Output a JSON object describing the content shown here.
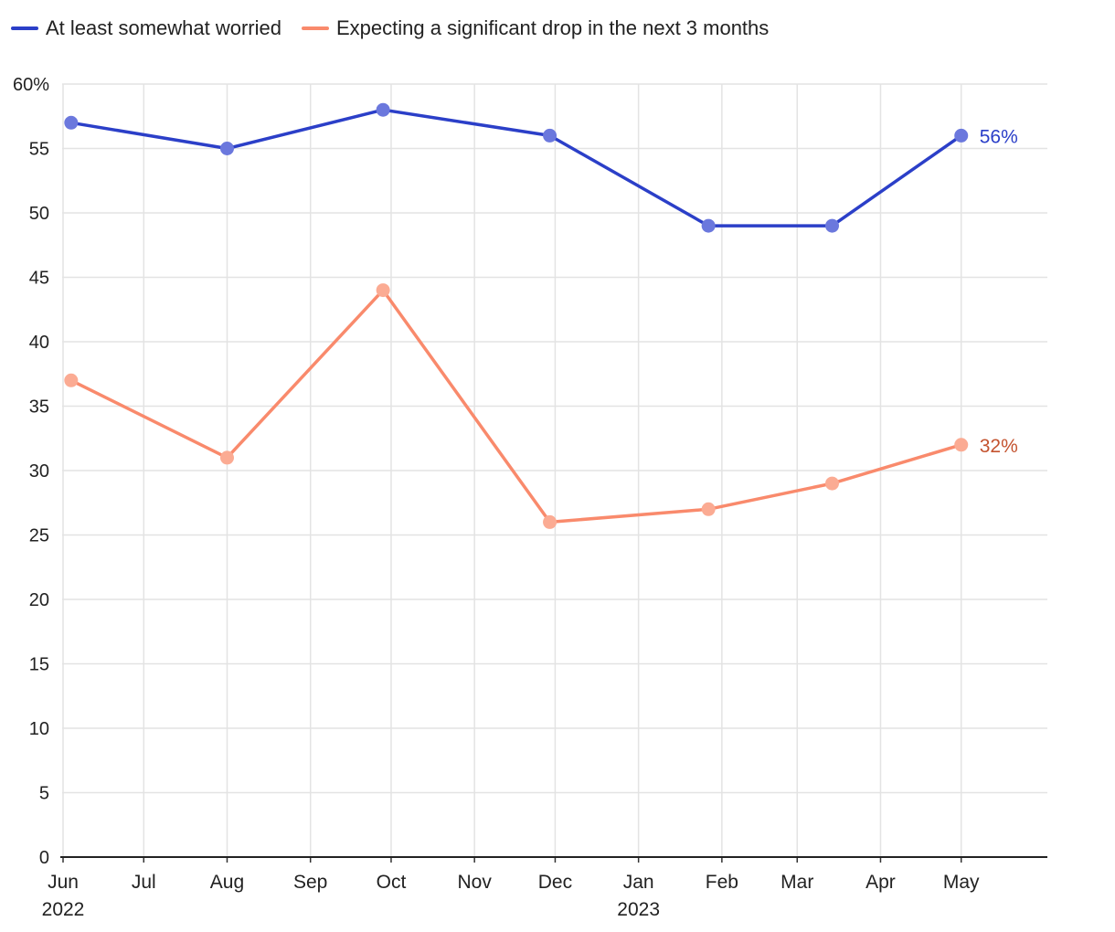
{
  "chart_data": {
    "type": "line",
    "title": "",
    "xlabel": "",
    "ylabel": "",
    "x_axis": {
      "range": [
        "2022-06-01",
        "2023-05-31"
      ],
      "ticks": [
        {
          "date": "2022-06-01",
          "label": "Jun",
          "sublabel": "2022"
        },
        {
          "date": "2022-07-01",
          "label": "Jul"
        },
        {
          "date": "2022-08-01",
          "label": "Aug"
        },
        {
          "date": "2022-09-01",
          "label": "Sep"
        },
        {
          "date": "2022-10-01",
          "label": "Oct"
        },
        {
          "date": "2022-11-01",
          "label": "Nov"
        },
        {
          "date": "2022-12-01",
          "label": "Dec"
        },
        {
          "date": "2023-01-01",
          "label": "Jan",
          "sublabel": "2023"
        },
        {
          "date": "2023-02-01",
          "label": "Feb"
        },
        {
          "date": "2023-03-01",
          "label": "Mar"
        },
        {
          "date": "2023-04-01",
          "label": "Apr"
        },
        {
          "date": "2023-05-01",
          "label": "May"
        }
      ]
    },
    "y_axis": {
      "range": [
        0,
        60
      ],
      "ticks": [
        0,
        5,
        10,
        15,
        20,
        25,
        30,
        35,
        40,
        45,
        50,
        55,
        60
      ],
      "tick_labels": [
        "0",
        "5",
        "10",
        "15",
        "20",
        "25",
        "30",
        "35",
        "40",
        "45",
        "50",
        "55",
        "60%"
      ]
    },
    "grid": true,
    "legend_position": "top-left",
    "series": [
      {
        "name": "At least somewhat worried",
        "color": "#2b3fc8",
        "marker_color": "#6b78dd",
        "label_color": "#2b3fc8",
        "end_label": "56%",
        "points": [
          {
            "x": "2022-06-04",
            "y": 57
          },
          {
            "x": "2022-08-01",
            "y": 55
          },
          {
            "x": "2022-09-28",
            "y": 58
          },
          {
            "x": "2022-11-29",
            "y": 56
          },
          {
            "x": "2023-01-27",
            "y": 49
          },
          {
            "x": "2023-03-14",
            "y": 49
          },
          {
            "x": "2023-05-01",
            "y": 56
          }
        ]
      },
      {
        "name": "Expecting a significant drop in the next 3 months",
        "color": "#f98a6c",
        "marker_color": "#fbab93",
        "label_color": "#c4532f",
        "end_label": "32%",
        "points": [
          {
            "x": "2022-06-04",
            "y": 37
          },
          {
            "x": "2022-08-01",
            "y": 31
          },
          {
            "x": "2022-09-28",
            "y": 44
          },
          {
            "x": "2022-11-29",
            "y": 26
          },
          {
            "x": "2023-01-27",
            "y": 27
          },
          {
            "x": "2023-03-14",
            "y": 29
          },
          {
            "x": "2023-05-01",
            "y": 32
          }
        ]
      }
    ]
  }
}
